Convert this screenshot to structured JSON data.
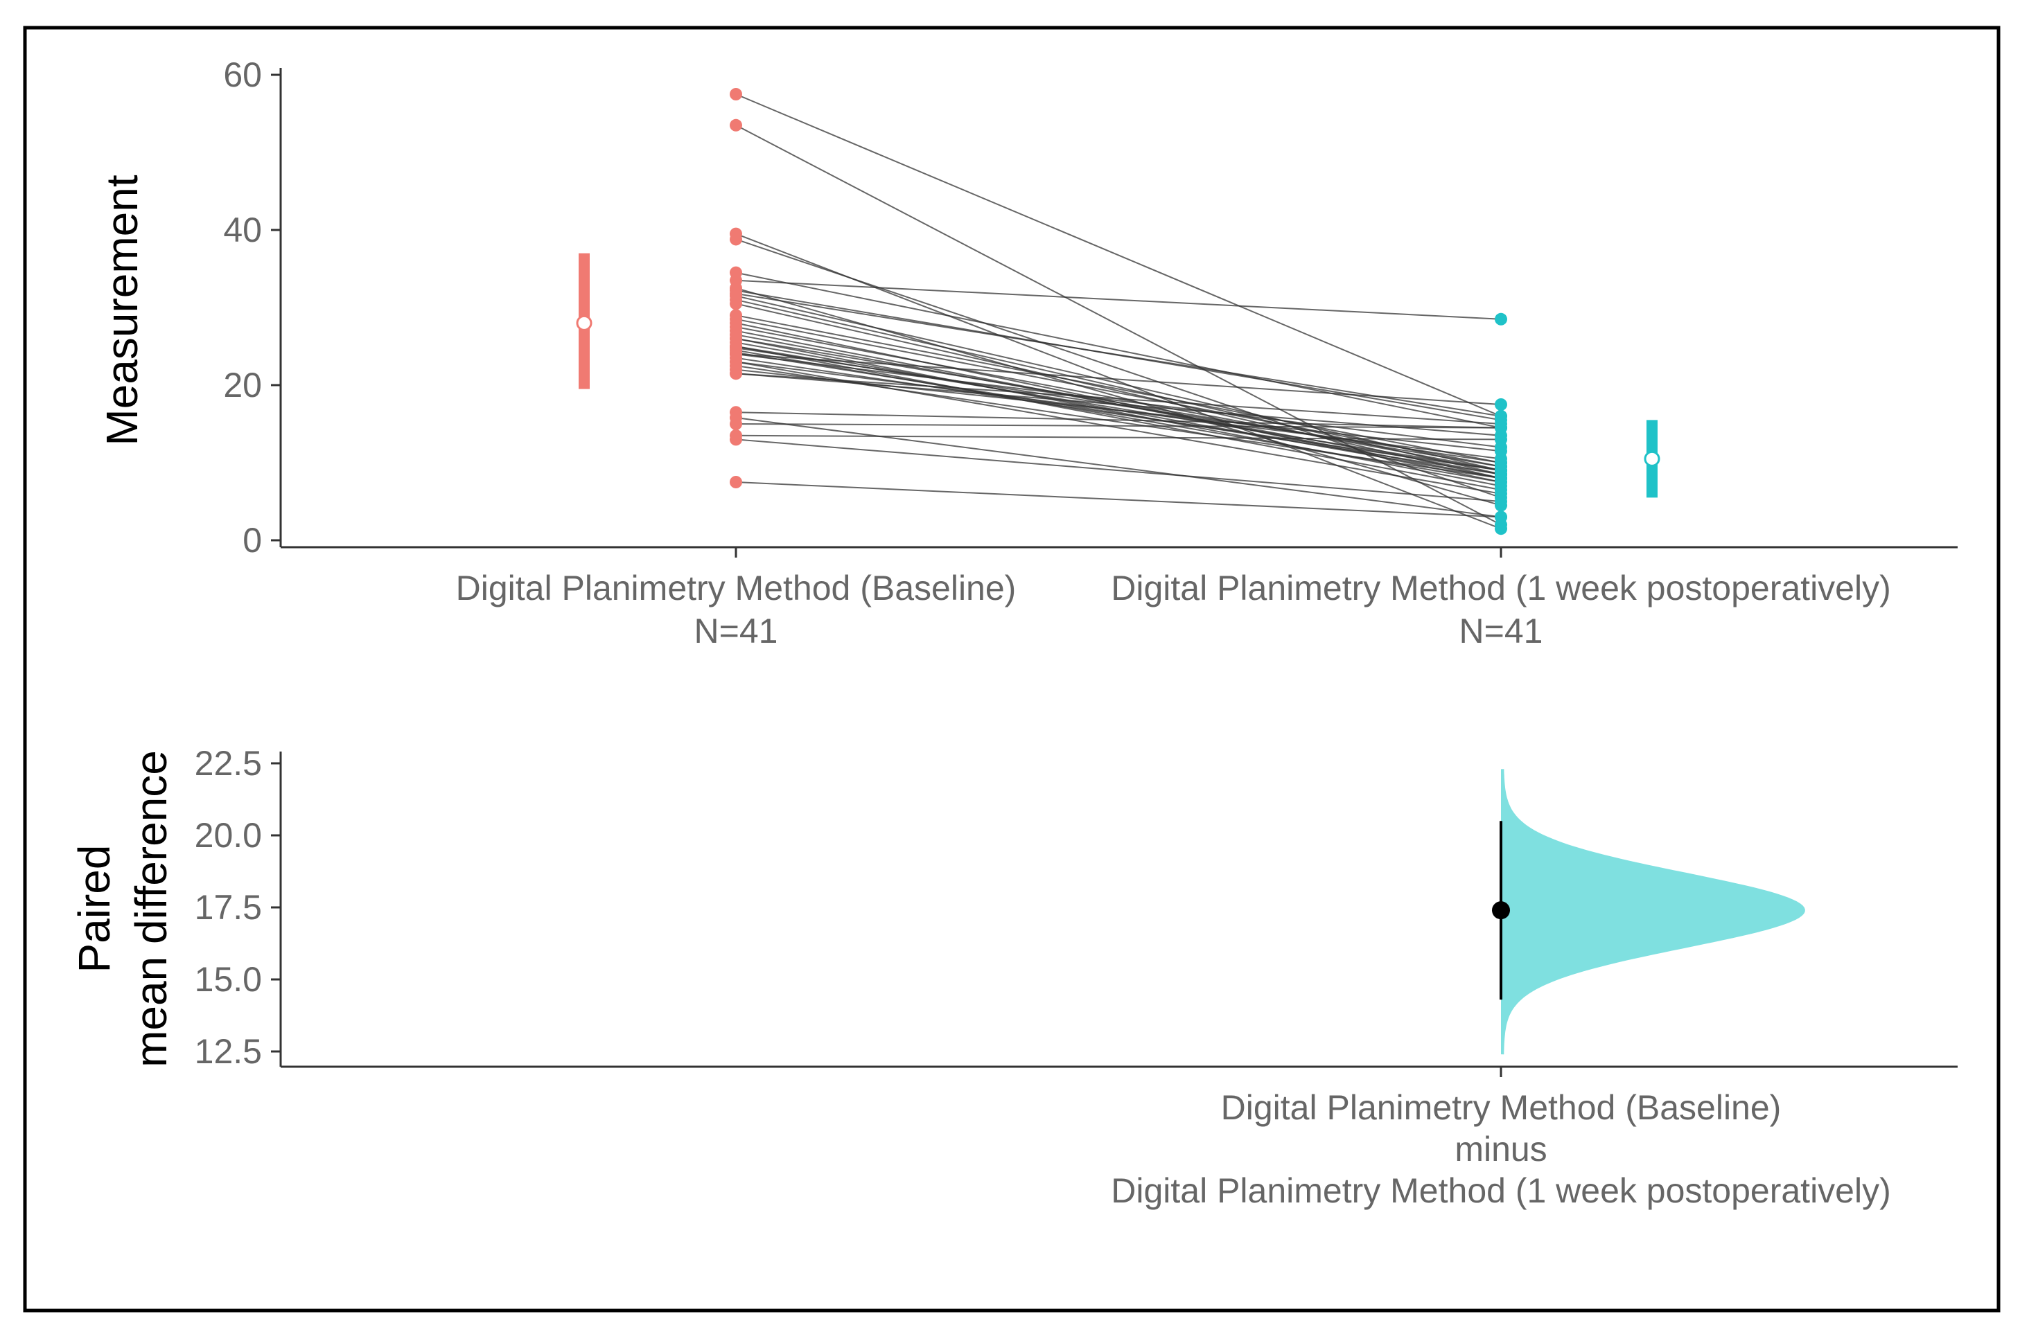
{
  "colors": {
    "baseline": "#f07a72",
    "postop": "#1fc2c8",
    "postop_density": "#7fe0e0",
    "pair_line": "#333333",
    "axis": "#333333",
    "tick_text": "#666666",
    "label_text": "#000000"
  },
  "chart_data": [
    {
      "type": "scatter",
      "subtype": "paired slopegraph (estimation plot)",
      "ylabel": "Measurement",
      "ylim": [
        0,
        60
      ],
      "yticks": [
        "0",
        "20",
        "40",
        "60"
      ],
      "grid": false,
      "groups": [
        {
          "label": "Digital Planimetry Method (Baseline)",
          "n_label": "N=41"
        },
        {
          "label": "Digital Planimetry Method (1 week postoperatively)",
          "n_label": "N=41"
        }
      ],
      "pairs": [
        [
          57.5,
          16.0
        ],
        [
          53.5,
          2.0
        ],
        [
          39.5,
          1.5
        ],
        [
          38.8,
          5.5
        ],
        [
          34.5,
          14.5
        ],
        [
          33.5,
          28.5
        ],
        [
          32.5,
          4.5
        ],
        [
          32.2,
          15.5
        ],
        [
          31.8,
          16.0
        ],
        [
          31.5,
          9.0
        ],
        [
          31.0,
          8.5
        ],
        [
          30.5,
          8.0
        ],
        [
          29.0,
          10.0
        ],
        [
          28.5,
          9.5
        ],
        [
          28.0,
          7.5
        ],
        [
          27.5,
          9.0
        ],
        [
          27.0,
          8.0
        ],
        [
          26.5,
          8.5
        ],
        [
          26.0,
          9.5
        ],
        [
          26.0,
          7.0
        ],
        [
          25.5,
          8.0
        ],
        [
          25.0,
          9.0
        ],
        [
          25.0,
          6.5
        ],
        [
          24.8,
          10.0
        ],
        [
          24.5,
          7.5
        ],
        [
          24.2,
          8.5
        ],
        [
          24.0,
          12.0
        ],
        [
          24.0,
          17.5
        ],
        [
          23.5,
          9.0
        ],
        [
          23.0,
          6.0
        ],
        [
          23.0,
          10.5
        ],
        [
          22.5,
          8.0
        ],
        [
          22.0,
          11.5
        ],
        [
          21.5,
          13.5
        ],
        [
          21.5,
          15.0
        ],
        [
          16.5,
          14.5
        ],
        [
          15.8,
          3.0
        ],
        [
          15.0,
          14.5
        ],
        [
          13.5,
          13.0
        ],
        [
          13.0,
          5.0
        ],
        [
          7.5,
          3.0
        ]
      ],
      "summary": [
        {
          "mean": 28.0,
          "lower": 19.5,
          "upper": 37.0
        },
        {
          "mean": 10.5,
          "lower": 5.5,
          "upper": 15.5
        }
      ]
    },
    {
      "type": "scatter",
      "subtype": "bootstrap distribution with point estimate and interval",
      "ylabel": "Paired\nmean difference",
      "ylim": [
        11.75,
        22.75
      ],
      "yticks": [
        "12.5",
        "15.0",
        "17.5",
        "20.0",
        "22.5"
      ],
      "grid": false,
      "comparison": {
        "line1": "Digital Planimetry Method (Baseline)",
        "line2": "minus",
        "line3": "Digital Planimetry Method (1 week postoperatively)"
      },
      "estimate": {
        "mean": 17.4,
        "ci_lower": 14.3,
        "ci_upper": 20.5
      },
      "distribution": {
        "mean": 17.4,
        "sd": 1.3,
        "min": 12.4,
        "max": 22.3
      }
    }
  ]
}
